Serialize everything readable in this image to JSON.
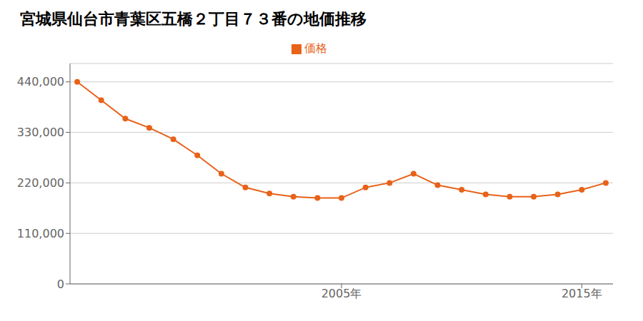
{
  "chart_data": {
    "type": "line",
    "title": "宮城県仙台市青葉区五橋２丁目７３番の地価推移",
    "x": [
      1994,
      1995,
      1996,
      1997,
      1998,
      1999,
      2000,
      2001,
      2002,
      2003,
      2004,
      2005,
      2006,
      2007,
      2008,
      2009,
      2010,
      2011,
      2012,
      2013,
      2014,
      2015,
      2016
    ],
    "series": [
      {
        "name": "価格",
        "color": "#e8621a",
        "marker": "circle",
        "values": [
          440000,
          400000,
          360000,
          340000,
          315000,
          280000,
          240000,
          210000,
          197000,
          190000,
          187000,
          187000,
          210000,
          220000,
          240000,
          215000,
          205000,
          195000,
          190000,
          190000,
          195000,
          205000,
          220000
        ]
      }
    ],
    "xlim": [
      1993.7,
      2016.3
    ],
    "xticks": [
      {
        "value": 2005,
        "label": "2005年"
      },
      {
        "value": 2015,
        "label": "2015年"
      }
    ],
    "ylim": [
      0,
      480000
    ],
    "yticks": [
      0,
      {
        "value": 110000,
        "label": "110,000"
      },
      {
        "value": 220000,
        "label": "220,000"
      },
      {
        "value": 330000,
        "label": "330,000"
      },
      {
        "value": 440000,
        "label": "440,000"
      }
    ],
    "grid": true,
    "legend": "top"
  }
}
